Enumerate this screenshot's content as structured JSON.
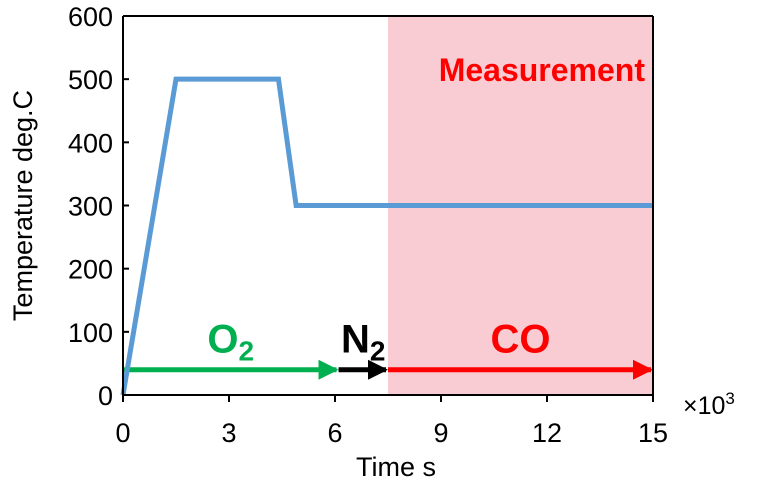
{
  "chart_data": {
    "type": "line",
    "title": "",
    "xlabel": "Time s",
    "ylabel": "Temperature deg.C",
    "x_multiplier_label": "×10",
    "x_multiplier_exp": "3",
    "xlim": [
      0,
      15
    ],
    "ylim": [
      0,
      600
    ],
    "xticks": [
      0,
      3,
      6,
      9,
      12,
      15
    ],
    "yticks": [
      0,
      100,
      200,
      300,
      400,
      500,
      600
    ],
    "grid": false,
    "series": [
      {
        "color": "#5b9bd5",
        "x": [
          0,
          1.5,
          4.4,
          4.9,
          15
        ],
        "y": [
          0,
          500,
          500,
          300,
          300
        ]
      }
    ],
    "region": {
      "label": "Measurement",
      "x_start": 7.5,
      "x_end": 15,
      "color": "#f9cbd3",
      "label_color": "#ff0000"
    },
    "arrows": [
      {
        "label": "O",
        "subscript": "2",
        "x_start": 0,
        "x_end": 6.1,
        "y": 40,
        "color": "#00b050"
      },
      {
        "label": "N",
        "subscript": "2",
        "x_start": 6.1,
        "x_end": 7.5,
        "y": 40,
        "color": "#000000"
      },
      {
        "label": "CO",
        "subscript": "",
        "x_start": 7.5,
        "x_end": 15,
        "y": 40,
        "color": "#ff0000"
      }
    ]
  }
}
